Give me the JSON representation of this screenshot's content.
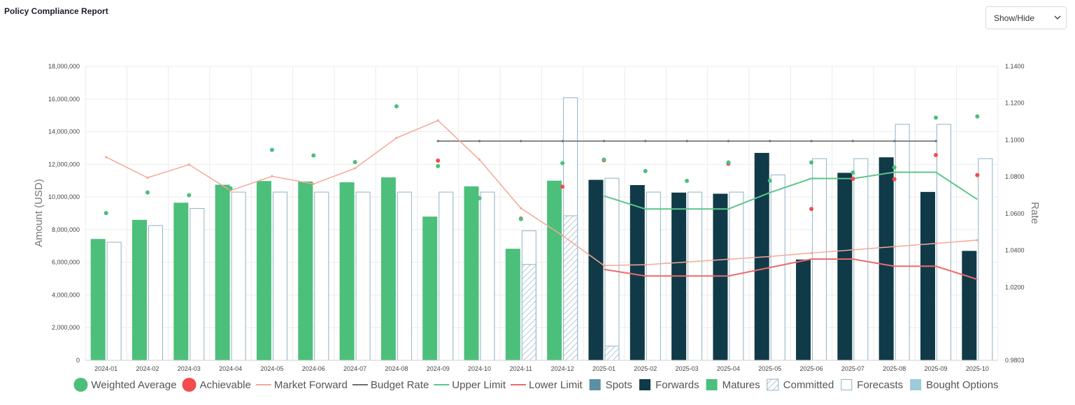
{
  "header": {
    "title": "Policy Compliance Report",
    "show_hide_label": "Show/Hide"
  },
  "icons": {
    "dropdown": "chevron-down-icon"
  },
  "chart_data": {
    "type": "bar",
    "categories": [
      "2024-01",
      "2024-02",
      "2024-03",
      "2024-04",
      "2024-05",
      "2024-06",
      "2024-07",
      "2024-08",
      "2024-09",
      "2024-10",
      "2024-11",
      "2024-12",
      "2025-01",
      "2025-02",
      "2025-03",
      "2025-04",
      "2025-05",
      "2025-06",
      "2025-07",
      "2025-08",
      "2025-09",
      "2025-10"
    ],
    "ylabel": "Amount (USD)",
    "y2label": "Rate",
    "ylim": [
      0,
      18000000
    ],
    "y_ticks": [
      "0",
      "2,000,000",
      "4,000,000",
      "6,000,000",
      "8,000,000",
      "10,000,000",
      "12,000,000",
      "14,000,000",
      "16,000,000",
      "18,000,000"
    ],
    "y2lim": [
      0.9803,
      1.14
    ],
    "y2_ticks": [
      "0.9803",
      "1.0200",
      "1.0400",
      "1.0600",
      "1.0800",
      "1.1000",
      "1.1200",
      "1.1400"
    ],
    "grid": true,
    "legend_position": "bottom",
    "legend": [
      {
        "label": "Weighted Average",
        "marker": "circle",
        "color": "#4cbf7b"
      },
      {
        "label": "Achievable",
        "marker": "circle",
        "color": "#f24c4c"
      },
      {
        "label": "Market Forward",
        "marker": "line",
        "color": "#f5a898"
      },
      {
        "label": "Budget Rate",
        "marker": "line",
        "color": "#6e6e6e"
      },
      {
        "label": "Upper Limit",
        "marker": "line",
        "color": "#5cc589"
      },
      {
        "label": "Lower Limit",
        "marker": "line",
        "color": "#ec6a6a"
      },
      {
        "label": "Spots",
        "marker": "square",
        "color": "#5b8fa6"
      },
      {
        "label": "Forwards",
        "marker": "square",
        "color": "#103a48"
      },
      {
        "label": "Matures",
        "marker": "square",
        "color": "#4cbf7b"
      },
      {
        "label": "Committed",
        "marker": "hatch",
        "color": "#8fb3c4"
      },
      {
        "label": "Forecasts",
        "marker": "outline",
        "color": "#8fb3c4"
      },
      {
        "label": "Bought Options",
        "marker": "square",
        "color": "#9ccbd9"
      }
    ],
    "colors": {
      "matures": "#4cbf7b",
      "forwards": "#103a48",
      "forecast_border": "#8fb3c4",
      "committed": "#8fb3c4",
      "weighted_average": "#4cbf7b",
      "achievable": "#f24c4c",
      "market_forward": "#f5a898",
      "budget_rate": "#6e6e6e",
      "upper_limit": "#5cc589",
      "lower_limit": "#ec6a6a"
    },
    "series": {
      "hedged": [
        7430000,
        8600000,
        9650000,
        10750000,
        10980000,
        10950000,
        10900000,
        11200000,
        8800000,
        10650000,
        6830000,
        11000000,
        11050000,
        10730000,
        10270000,
        10200000,
        12700000,
        6170000,
        11480000,
        12430000,
        10310000,
        6700000
      ],
      "hedged_type": [
        "matures",
        "matures",
        "matures",
        "matures",
        "matures",
        "matures",
        "matures",
        "matures",
        "matures",
        "matures",
        "matures",
        "matures",
        "forwards",
        "forwards",
        "forwards",
        "forwards",
        "forwards",
        "forwards",
        "forwards",
        "forwards",
        "forwards",
        "forwards"
      ],
      "forecasts": [
        7230000,
        8250000,
        9300000,
        10300000,
        10300000,
        10300000,
        10300000,
        10300000,
        10300000,
        10300000,
        7930000,
        8850000,
        11150000,
        10300000,
        10300000,
        10300000,
        11350000,
        12350000,
        12350000,
        14450000,
        14450000,
        12350000
      ],
      "committed": [
        null,
        null,
        null,
        null,
        null,
        null,
        null,
        null,
        null,
        null,
        5870000,
        8850000,
        870000,
        null,
        null,
        null,
        null,
        null,
        null,
        null,
        null,
        null
      ],
      "committed_top": [
        null,
        null,
        null,
        null,
        null,
        null,
        null,
        null,
        null,
        null,
        null,
        16080000,
        null,
        null,
        null,
        null,
        null,
        null,
        null,
        null,
        null,
        null
      ],
      "weighted_average": [
        1.0603,
        1.0715,
        1.07,
        1.0737,
        1.0946,
        1.0916,
        1.088,
        1.1183,
        1.0858,
        1.0684,
        1.057,
        1.0874,
        1.0893,
        1.0831,
        1.0778,
        1.0878,
        1.0779,
        1.0878,
        1.0823,
        1.0851,
        1.1121,
        1.1128
      ],
      "achievable": [
        null,
        null,
        null,
        null,
        null,
        null,
        null,
        null,
        1.0888,
        null,
        1.0573,
        1.0746,
        1.089,
        null,
        null,
        1.0871,
        null,
        1.0625,
        1.0789,
        1.0787,
        1.0918,
        1.0809
      ],
      "market_forward": [
        1.0907,
        1.0795,
        1.0866,
        1.0725,
        1.0803,
        1.0761,
        1.0846,
        1.1011,
        1.1106,
        1.0893,
        1.0629,
        1.0481,
        1.0318,
        1.0322,
        1.0337,
        1.0352,
        1.0367,
        1.0386,
        1.0403,
        1.0421,
        1.0438,
        1.0456
      ],
      "budget_rate": [
        null,
        null,
        null,
        null,
        null,
        null,
        null,
        null,
        1.0994,
        1.0994,
        1.0994,
        1.0994,
        1.0994,
        1.0994,
        1.0994,
        1.0994,
        1.0994,
        1.0994,
        1.0994,
        1.0994,
        1.0994,
        null
      ],
      "upper_limit": [
        null,
        null,
        null,
        null,
        null,
        null,
        null,
        null,
        null,
        null,
        null,
        null,
        1.0696,
        1.0625,
        1.0625,
        1.0625,
        1.0714,
        1.0791,
        1.079,
        1.0825,
        1.0825,
        1.0677
      ],
      "lower_limit": [
        null,
        null,
        null,
        null,
        null,
        null,
        null,
        null,
        null,
        null,
        null,
        null,
        1.0297,
        1.0261,
        1.0261,
        1.0261,
        1.0307,
        1.0353,
        1.0353,
        1.0314,
        1.0314,
        1.0243
      ]
    }
  }
}
